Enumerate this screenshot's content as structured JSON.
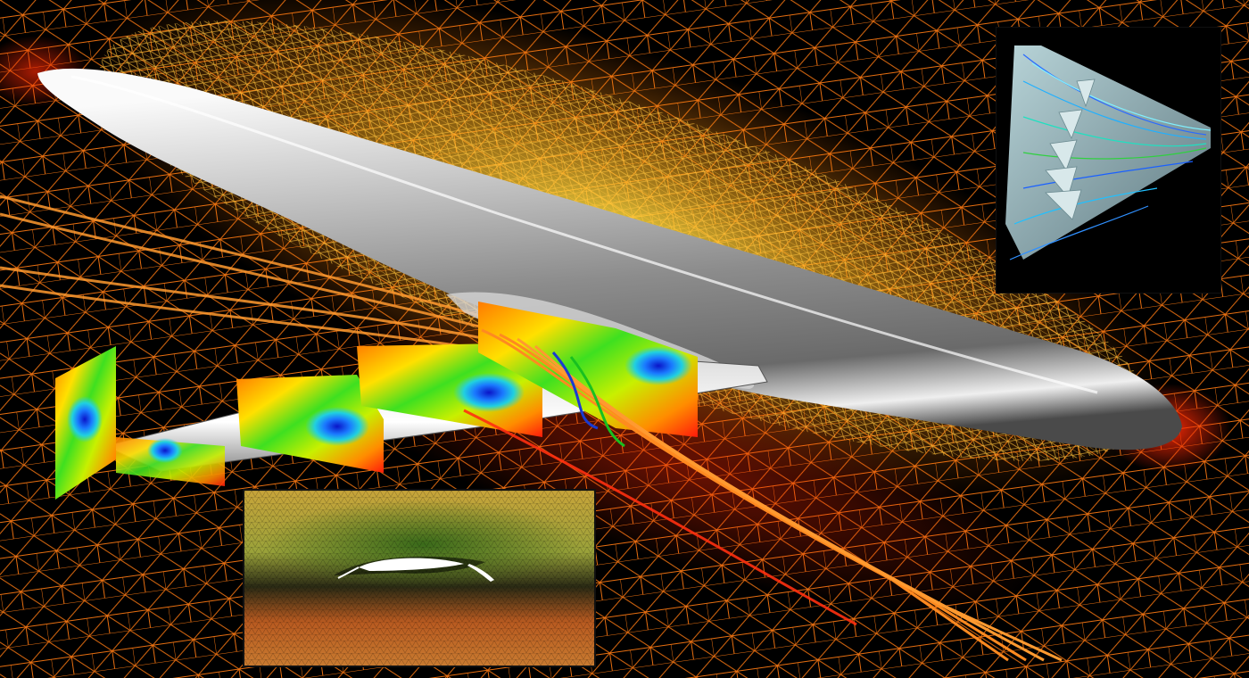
{
  "scene": {
    "subject": "aircraft",
    "colors": {
      "mesh_far": "#ff8a1a",
      "mesh_near": "#ffd640",
      "surface_light": "#f2f2f2",
      "surface_dark": "#5a5a5a",
      "background": "#000000",
      "pressure_low": "#0a14c8",
      "pressure_high": "#ff1a0a"
    }
  },
  "insets": {
    "wing_streamlines": {
      "icon": "wing-streamline-icon"
    },
    "airfoil_mesh": {
      "icon": "airfoil-mesh-icon"
    }
  }
}
